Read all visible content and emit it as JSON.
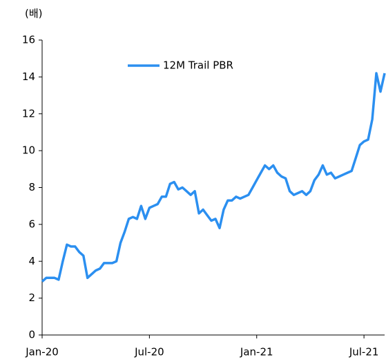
{
  "chart_data": {
    "type": "line",
    "unit_label": "(배)",
    "categories": [
      "Jan-20",
      null,
      null,
      null,
      null,
      null,
      null,
      null,
      null,
      null,
      null,
      null,
      null,
      null,
      null,
      null,
      null,
      null,
      null,
      null,
      null,
      null,
      null,
      null,
      null,
      null,
      "Jul-20",
      null,
      null,
      null,
      null,
      null,
      null,
      null,
      null,
      null,
      null,
      null,
      null,
      null,
      null,
      null,
      null,
      null,
      null,
      null,
      null,
      null,
      null,
      null,
      null,
      null,
      "Jan-21",
      null,
      null,
      null,
      null,
      null,
      null,
      null,
      null,
      null,
      null,
      null,
      null,
      null,
      null,
      null,
      null,
      null,
      null,
      null,
      null,
      null,
      null,
      null,
      null,
      null,
      "Jul-21",
      null,
      null,
      null,
      null,
      null
    ],
    "series": [
      {
        "name": "12M Trail PBR",
        "color": "#2b8ff0",
        "values": [
          2.9,
          3.1,
          3.1,
          3.1,
          3.0,
          4.0,
          4.9,
          4.8,
          4.8,
          4.5,
          4.3,
          3.1,
          3.3,
          3.5,
          3.6,
          3.9,
          3.9,
          3.9,
          4.0,
          5.0,
          5.6,
          6.3,
          6.4,
          6.3,
          7.0,
          6.3,
          6.9,
          7.0,
          7.1,
          7.5,
          7.5,
          8.2,
          8.3,
          7.9,
          8.0,
          7.8,
          7.6,
          7.8,
          6.6,
          6.8,
          6.5,
          6.2,
          6.3,
          5.8,
          6.8,
          7.3,
          7.3,
          7.5,
          7.4,
          7.5,
          7.6,
          8.0,
          8.4,
          8.8,
          9.2,
          9.0,
          9.2,
          8.8,
          8.6,
          8.5,
          7.8,
          7.6,
          7.7,
          7.8,
          7.6,
          7.8,
          8.4,
          8.7,
          9.2,
          8.7,
          8.8,
          8.5,
          8.6,
          8.7,
          8.8,
          8.9,
          9.6,
          10.3,
          10.5,
          10.6,
          11.7,
          14.2,
          13.2,
          14.2
        ]
      }
    ],
    "ylim": [
      0,
      16
    ],
    "yticks": [
      0,
      2,
      4,
      6,
      8,
      10,
      12,
      14,
      16
    ],
    "grid": false,
    "legend": "top"
  }
}
